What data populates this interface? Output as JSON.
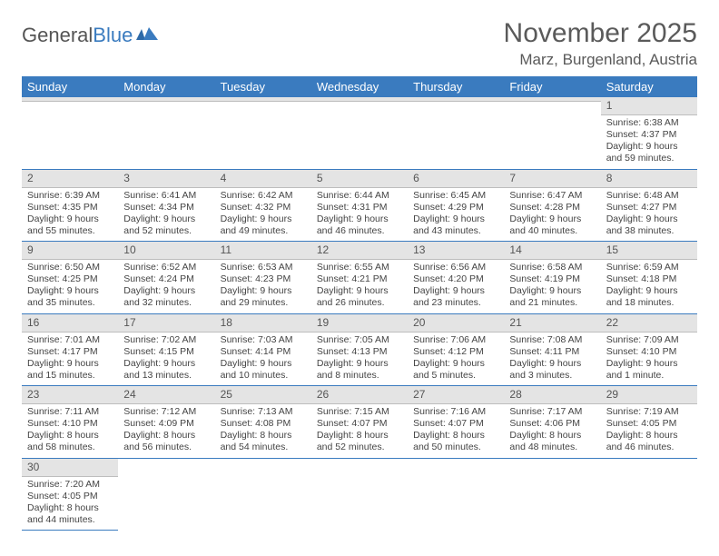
{
  "logo": {
    "part1": "General",
    "part2": "Blue"
  },
  "title": "November 2025",
  "location": "Marz, Burgenland, Austria",
  "colors": {
    "header_bg": "#3a7bbf",
    "header_fg": "#ffffff",
    "daynum_bg": "#e4e4e4",
    "row_divider": "#3a7bbf",
    "text": "#444444",
    "page_bg": "#ffffff"
  },
  "typography": {
    "title_fontsize": 30,
    "location_fontsize": 17,
    "weekday_fontsize": 13,
    "daynum_fontsize": 12,
    "body_fontsize": 10.5
  },
  "weekdays": [
    "Sunday",
    "Monday",
    "Tuesday",
    "Wednesday",
    "Thursday",
    "Friday",
    "Saturday"
  ],
  "weeks": [
    [
      null,
      null,
      null,
      null,
      null,
      null,
      {
        "n": "1",
        "sr": "Sunrise: 6:38 AM",
        "ss": "Sunset: 4:37 PM",
        "dl": "Daylight: 9 hours and 59 minutes."
      }
    ],
    [
      {
        "n": "2",
        "sr": "Sunrise: 6:39 AM",
        "ss": "Sunset: 4:35 PM",
        "dl": "Daylight: 9 hours and 55 minutes."
      },
      {
        "n": "3",
        "sr": "Sunrise: 6:41 AM",
        "ss": "Sunset: 4:34 PM",
        "dl": "Daylight: 9 hours and 52 minutes."
      },
      {
        "n": "4",
        "sr": "Sunrise: 6:42 AM",
        "ss": "Sunset: 4:32 PM",
        "dl": "Daylight: 9 hours and 49 minutes."
      },
      {
        "n": "5",
        "sr": "Sunrise: 6:44 AM",
        "ss": "Sunset: 4:31 PM",
        "dl": "Daylight: 9 hours and 46 minutes."
      },
      {
        "n": "6",
        "sr": "Sunrise: 6:45 AM",
        "ss": "Sunset: 4:29 PM",
        "dl": "Daylight: 9 hours and 43 minutes."
      },
      {
        "n": "7",
        "sr": "Sunrise: 6:47 AM",
        "ss": "Sunset: 4:28 PM",
        "dl": "Daylight: 9 hours and 40 minutes."
      },
      {
        "n": "8",
        "sr": "Sunrise: 6:48 AM",
        "ss": "Sunset: 4:27 PM",
        "dl": "Daylight: 9 hours and 38 minutes."
      }
    ],
    [
      {
        "n": "9",
        "sr": "Sunrise: 6:50 AM",
        "ss": "Sunset: 4:25 PM",
        "dl": "Daylight: 9 hours and 35 minutes."
      },
      {
        "n": "10",
        "sr": "Sunrise: 6:52 AM",
        "ss": "Sunset: 4:24 PM",
        "dl": "Daylight: 9 hours and 32 minutes."
      },
      {
        "n": "11",
        "sr": "Sunrise: 6:53 AM",
        "ss": "Sunset: 4:23 PM",
        "dl": "Daylight: 9 hours and 29 minutes."
      },
      {
        "n": "12",
        "sr": "Sunrise: 6:55 AM",
        "ss": "Sunset: 4:21 PM",
        "dl": "Daylight: 9 hours and 26 minutes."
      },
      {
        "n": "13",
        "sr": "Sunrise: 6:56 AM",
        "ss": "Sunset: 4:20 PM",
        "dl": "Daylight: 9 hours and 23 minutes."
      },
      {
        "n": "14",
        "sr": "Sunrise: 6:58 AM",
        "ss": "Sunset: 4:19 PM",
        "dl": "Daylight: 9 hours and 21 minutes."
      },
      {
        "n": "15",
        "sr": "Sunrise: 6:59 AM",
        "ss": "Sunset: 4:18 PM",
        "dl": "Daylight: 9 hours and 18 minutes."
      }
    ],
    [
      {
        "n": "16",
        "sr": "Sunrise: 7:01 AM",
        "ss": "Sunset: 4:17 PM",
        "dl": "Daylight: 9 hours and 15 minutes."
      },
      {
        "n": "17",
        "sr": "Sunrise: 7:02 AM",
        "ss": "Sunset: 4:15 PM",
        "dl": "Daylight: 9 hours and 13 minutes."
      },
      {
        "n": "18",
        "sr": "Sunrise: 7:03 AM",
        "ss": "Sunset: 4:14 PM",
        "dl": "Daylight: 9 hours and 10 minutes."
      },
      {
        "n": "19",
        "sr": "Sunrise: 7:05 AM",
        "ss": "Sunset: 4:13 PM",
        "dl": "Daylight: 9 hours and 8 minutes."
      },
      {
        "n": "20",
        "sr": "Sunrise: 7:06 AM",
        "ss": "Sunset: 4:12 PM",
        "dl": "Daylight: 9 hours and 5 minutes."
      },
      {
        "n": "21",
        "sr": "Sunrise: 7:08 AM",
        "ss": "Sunset: 4:11 PM",
        "dl": "Daylight: 9 hours and 3 minutes."
      },
      {
        "n": "22",
        "sr": "Sunrise: 7:09 AM",
        "ss": "Sunset: 4:10 PM",
        "dl": "Daylight: 9 hours and 1 minute."
      }
    ],
    [
      {
        "n": "23",
        "sr": "Sunrise: 7:11 AM",
        "ss": "Sunset: 4:10 PM",
        "dl": "Daylight: 8 hours and 58 minutes."
      },
      {
        "n": "24",
        "sr": "Sunrise: 7:12 AM",
        "ss": "Sunset: 4:09 PM",
        "dl": "Daylight: 8 hours and 56 minutes."
      },
      {
        "n": "25",
        "sr": "Sunrise: 7:13 AM",
        "ss": "Sunset: 4:08 PM",
        "dl": "Daylight: 8 hours and 54 minutes."
      },
      {
        "n": "26",
        "sr": "Sunrise: 7:15 AM",
        "ss": "Sunset: 4:07 PM",
        "dl": "Daylight: 8 hours and 52 minutes."
      },
      {
        "n": "27",
        "sr": "Sunrise: 7:16 AM",
        "ss": "Sunset: 4:07 PM",
        "dl": "Daylight: 8 hours and 50 minutes."
      },
      {
        "n": "28",
        "sr": "Sunrise: 7:17 AM",
        "ss": "Sunset: 4:06 PM",
        "dl": "Daylight: 8 hours and 48 minutes."
      },
      {
        "n": "29",
        "sr": "Sunrise: 7:19 AM",
        "ss": "Sunset: 4:05 PM",
        "dl": "Daylight: 8 hours and 46 minutes."
      }
    ],
    [
      {
        "n": "30",
        "sr": "Sunrise: 7:20 AM",
        "ss": "Sunset: 4:05 PM",
        "dl": "Daylight: 8 hours and 44 minutes."
      },
      null,
      null,
      null,
      null,
      null,
      null
    ]
  ]
}
